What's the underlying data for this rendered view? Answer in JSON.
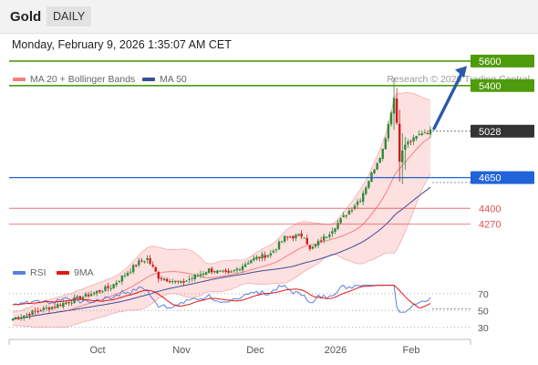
{
  "header": {
    "instrument": "Gold",
    "period": "DAILY",
    "timestamp": "Monday, February 9, 2026 1:35:07 AM CET"
  },
  "legend": {
    "bollinger_label": "MA 20 + Bollinger Bands",
    "ma50_label": "MA 50",
    "credit": "Research © 2026 Trading Central",
    "rsi_label": "RSI",
    "rsi_ma_label": "9MA"
  },
  "colors": {
    "candle_up": "#2f8a3b",
    "candle_down": "#d01c1c",
    "bollinger": "#f08080",
    "bollinger_fill": "#fde0e0",
    "ma50": "#3a4f96",
    "resistance": "#4e9b0c",
    "pivot": "#2163d8",
    "support": "#e05050",
    "last_price": "#333333",
    "rsi": "#5b7fdc",
    "rsi_ma": "#e01818"
  },
  "chart_data": {
    "type": "candlestick",
    "x_labels": [
      "Oct",
      "Nov",
      "Dec",
      "2026",
      "Feb"
    ],
    "ylim": [
      3450,
      5800
    ],
    "levels": {
      "resistance": [
        {
          "label": "5600",
          "value": 5600
        },
        {
          "label": "5400",
          "value": 5400
        }
      ],
      "last": {
        "label": "5028",
        "value": 5028
      },
      "pivot": {
        "label": "4650",
        "value": 4650
      },
      "support": [
        {
          "label": "4400",
          "value": 4400
        },
        {
          "label": "4270",
          "value": 4270
        }
      ]
    },
    "rsi": {
      "ylim": [
        20,
        85
      ],
      "ticks": [
        {
          "label": "70",
          "value": 70
        },
        {
          "label": "50",
          "value": 50
        },
        {
          "label": "30",
          "value": 30
        }
      ]
    }
  }
}
